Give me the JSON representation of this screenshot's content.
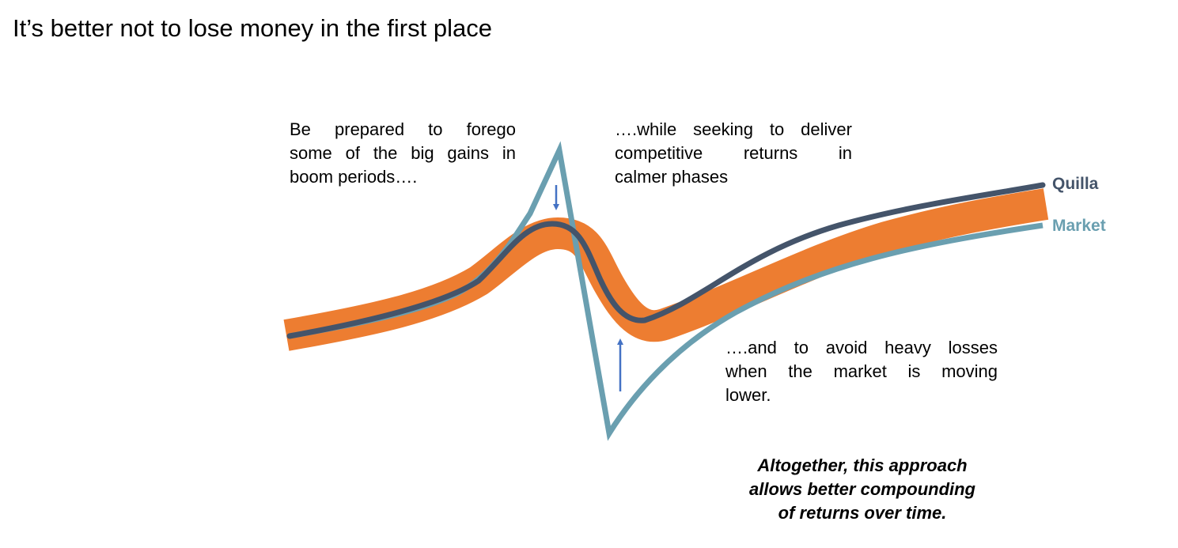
{
  "title": "It’s better not to lose money in the first place",
  "notes": {
    "boom": [
      "Be prepared to forego",
      "some of the big gains in",
      "boom periods…."
    ],
    "calm": [
      "….while seeking to deliver",
      "competitive returns in",
      "calmer phases"
    ],
    "loss": [
      "….and to avoid heavy losses",
      "when the market is moving",
      "lower."
    ]
  },
  "summary": [
    "Altogether, this approach",
    "allows better compounding",
    "of returns over time."
  ],
  "legend": {
    "quilla": "Quilla",
    "market": "Market"
  },
  "colors": {
    "quilla": "#44546A",
    "market": "#6A9FB0",
    "band": "#ED7D31",
    "arrow": "#4472C4"
  },
  "icons": {
    "down_arrow": "arrow-down-icon",
    "up_arrow": "arrow-up-icon"
  }
}
